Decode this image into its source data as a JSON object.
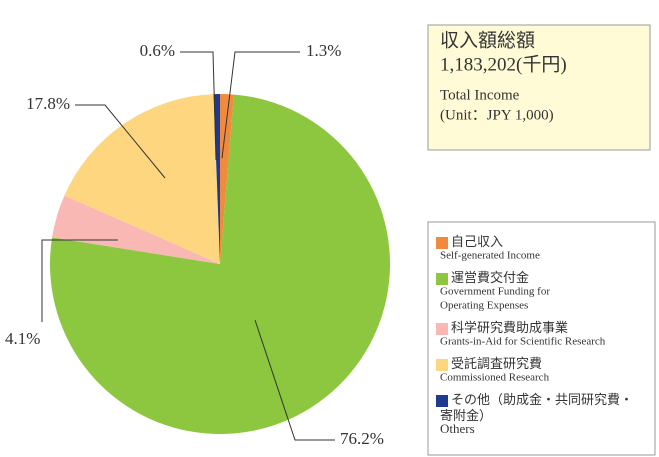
{
  "chart_data": {
    "type": "pie",
    "info": [
      "収入額総額",
      "1,183,202(千円)",
      "Total Income",
      "(Unit：JPY 1,000)"
    ],
    "categories": [
      [
        "自己収入"
      ],
      [
        "運営費交付金"
      ],
      [
        "科学研究費助成事業"
      ],
      [
        "受託調査研究費"
      ],
      [
        "その他（助成金・共同研究費・",
        "寄附金）"
      ]
    ],
    "categories_en": [
      [
        "Self-generated Income"
      ],
      [
        "Government Funding for",
        "Operating Expenses"
      ],
      [
        "Grants-in-Aid for Scientific Research"
      ],
      [
        "Commissioned Research"
      ],
      [
        "Others"
      ]
    ],
    "values": [
      1.3,
      76.2,
      4.1,
      17.8,
      0.6
    ],
    "value_labels": [
      "1.3%",
      "76.2%",
      "4.1%",
      "17.8%",
      "0.6%"
    ],
    "colors": [
      "#f08a3c",
      "#8dc63f",
      "#f9b8b4",
      "#fdd67f",
      "#1f3a8f"
    ]
  }
}
